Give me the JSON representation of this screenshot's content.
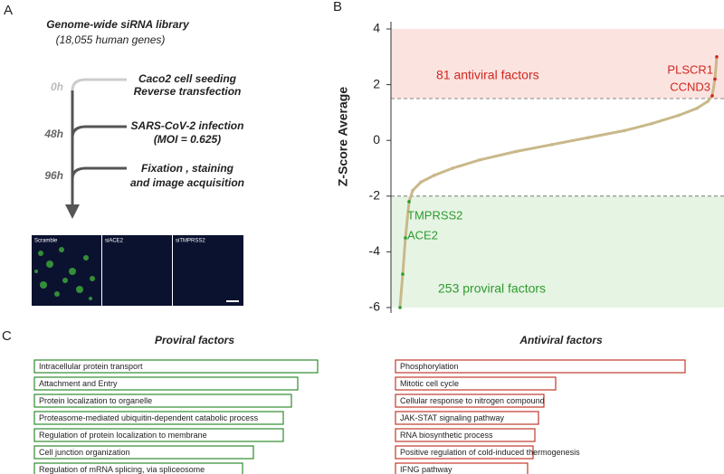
{
  "panels": {
    "a": "A",
    "b": "B",
    "c": "C"
  },
  "workflow": {
    "title": "Genome-wide siRNA library",
    "subtitle": "(18,055 human genes)",
    "steps": [
      {
        "time": "0h",
        "lines": [
          "Caco2 cell seeding",
          "Reverse transfection"
        ]
      },
      {
        "time": "48h",
        "lines": [
          "SARS-CoV-2 infection",
          "(MOI = 0.625)"
        ]
      },
      {
        "time": "96h",
        "lines": [
          "Fixation , staining",
          "and image acquisition"
        ]
      }
    ],
    "images": [
      "Scramble",
      "siACE2",
      "siTMPRSS2"
    ]
  },
  "chart_data": [
    {
      "type": "line",
      "ylabel": "Z-Score Average",
      "x": [
        491,
        638,
        785,
        981,
        1177,
        1619,
        2355,
        3336,
        4808,
        6771,
        8733,
        10696,
        12658,
        14130,
        15602,
        16583,
        17172,
        17417,
        17564,
        17662
      ],
      "values": [
        -6,
        -4.8,
        -3.5,
        -2.2,
        -1.8,
        -1.5,
        -1.25,
        -1.0,
        -0.7,
        -0.4,
        -0.15,
        0.1,
        0.35,
        0.6,
        0.9,
        1.15,
        1.4,
        1.6,
        2.2,
        3.0
      ],
      "xlim": [
        0,
        18055
      ],
      "ylim": [
        -6,
        4
      ],
      "yticks": [
        -6,
        -4,
        -2,
        0,
        2,
        4
      ],
      "thresholds": [
        1.5,
        -2
      ],
      "colors": {
        "low": "#2e9b2e",
        "mid": "#c9b88a",
        "high": "#d0281e",
        "low_fill": "#e6f4e4",
        "high_fill": "#fbe3e0"
      },
      "annotations": [
        "81 antiviral factors",
        "PLSCR1",
        "CCND3",
        "TMPRSS2",
        "ACE2",
        "253 proviral factors"
      ]
    },
    {
      "type": "bar",
      "title": "Proviral factors",
      "categories": [
        "Intracellular protein transport",
        "Attachment and Entry",
        "Protein localization to organelle",
        "Proteasome-mediated ubiquitin-dependent catabolic process",
        "Regulation of protein localization to membrane",
        "Cell junction organization",
        "Regulation of mRNA splicing, via spliceosome"
      ],
      "values": [
        313,
        291,
        284,
        275,
        275,
        242,
        230
      ],
      "xlim": [
        0,
        320
      ],
      "color": "#2e8b2e"
    },
    {
      "type": "bar",
      "title": "Antiviral factors",
      "categories": [
        "Phosphorylation",
        "Mitotic cell cycle",
        "Cellular response to nitrogen compound",
        "JAK-STAT signaling pathway",
        "RNA biosynthetic process",
        "Positive regulation of cold-induced thermogenesis",
        "IFNG pathway"
      ],
      "values": [
        320,
        177,
        164,
        158,
        154,
        152,
        146
      ],
      "xlim": [
        0,
        320
      ],
      "color": "#c0392b"
    }
  ]
}
